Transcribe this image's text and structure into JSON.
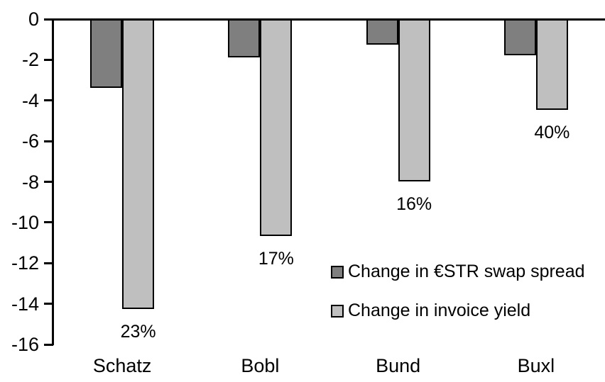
{
  "chart_data": {
    "type": "bar",
    "title": "",
    "categories": [
      "Schatz",
      "Bobl",
      "Bund",
      "Buxl"
    ],
    "series": [
      {
        "name": "Change in €STR swap spread",
        "color": "#7f7f7f",
        "values": [
          -3.3,
          -1.8,
          -1.2,
          -1.7
        ]
      },
      {
        "name": "Change in invoice yield",
        "color": "#bfbfbf",
        "values": [
          -14.2,
          -10.6,
          -7.9,
          -4.4
        ],
        "point_labels": [
          "23%",
          "17%",
          "16%",
          "40%"
        ]
      }
    ],
    "xlabel": "",
    "ylabel": "",
    "ylim": [
      -16,
      0
    ],
    "yticks": [
      0,
      -2,
      -4,
      -6,
      -8,
      -10,
      -12,
      -14,
      -16
    ],
    "grid": false,
    "legend_position": "inside-right",
    "bar_outline_color": "#000000",
    "axis_color": "#000000",
    "background_color": "#ffffff"
  }
}
